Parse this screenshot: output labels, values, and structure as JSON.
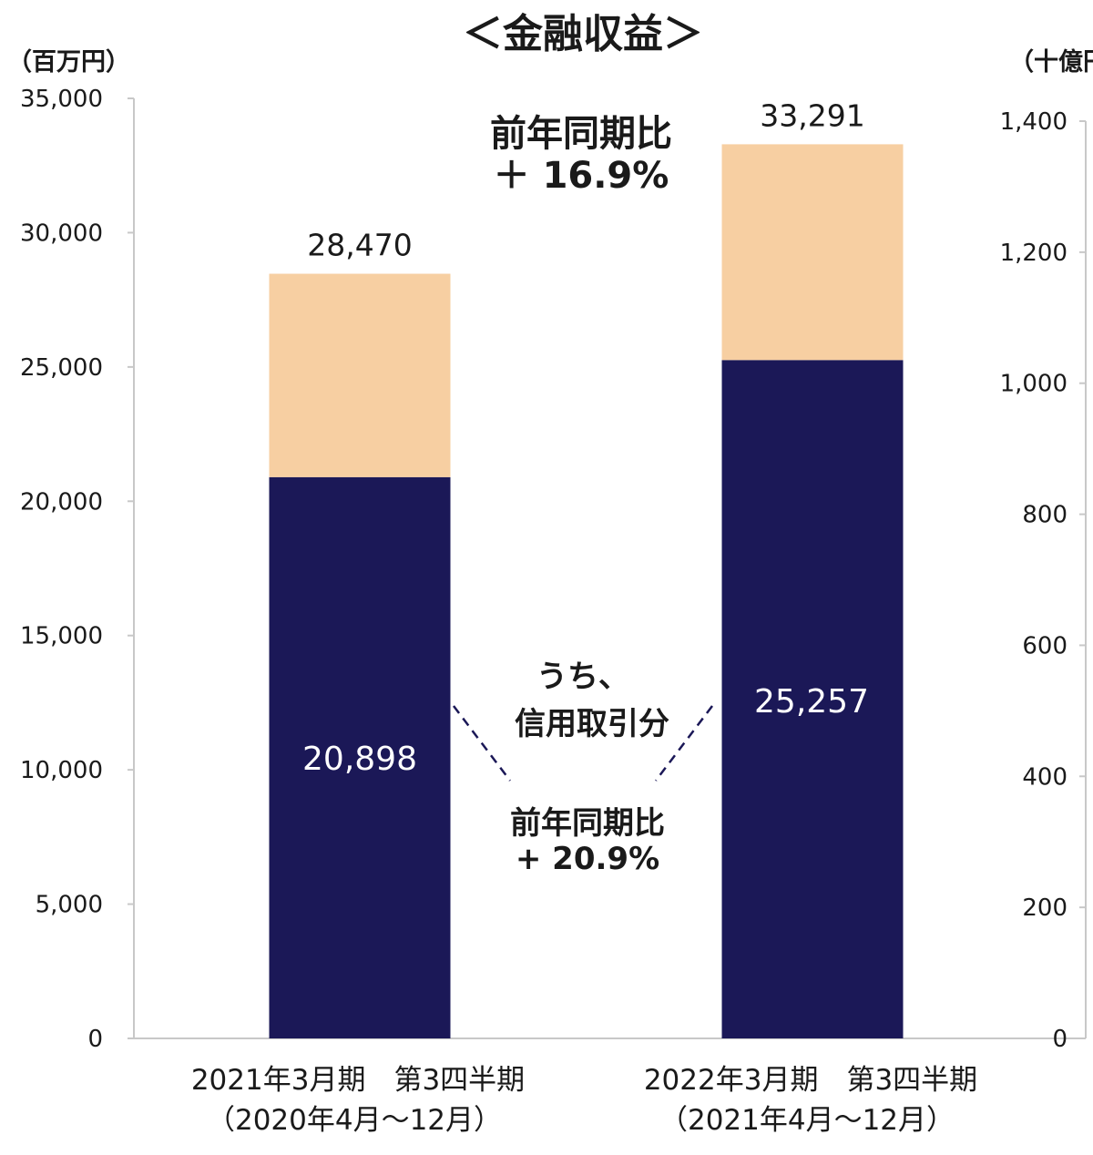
{
  "chart_data": {
    "type": "bar",
    "stacked": true,
    "title": "＜金融収益＞",
    "left_unit": "（百万円）",
    "right_unit": "（十億円）",
    "categories": [
      [
        "2021年3月期　第3四半期",
        "（2020年4月～12月）"
      ],
      [
        "2022年3月期　第3四半期",
        "（2021年4月～12月）"
      ]
    ],
    "series": [
      {
        "values": [
          20898,
          25257
        ],
        "color": "#1b1857"
      },
      {
        "values": [
          7572,
          8034
        ],
        "color": "#f7cfa2"
      }
    ],
    "totals": [
      28470,
      33291
    ],
    "total_labels": [
      "28,470",
      "33,291"
    ],
    "inner_labels": [
      "20,898",
      "25,257"
    ],
    "ylim": [
      0,
      35000
    ],
    "yticks": [
      0,
      5000,
      10000,
      15000,
      20000,
      25000,
      30000,
      35000
    ],
    "ytick_labels": [
      "0",
      "5,000",
      "10,000",
      "15,000",
      "20,000",
      "25,000",
      "30,000",
      "35,000"
    ],
    "y2lim": [
      0,
      1400
    ],
    "y2ticks": [
      0,
      200,
      400,
      600,
      800,
      1000,
      1200,
      1400
    ],
    "y2tick_labels": [
      "0",
      "200",
      "400",
      "600",
      "800",
      "1,000",
      "1,200",
      "1,400"
    ],
    "annotations": {
      "total_growth": [
        "前年同期比",
        "＋ 16.9%"
      ],
      "margin_note": [
        "うち、",
        "信用取引分"
      ],
      "margin_growth": [
        "前年同期比",
        "+ 20.9%"
      ]
    },
    "axis_color": "#c8c8c8"
  }
}
